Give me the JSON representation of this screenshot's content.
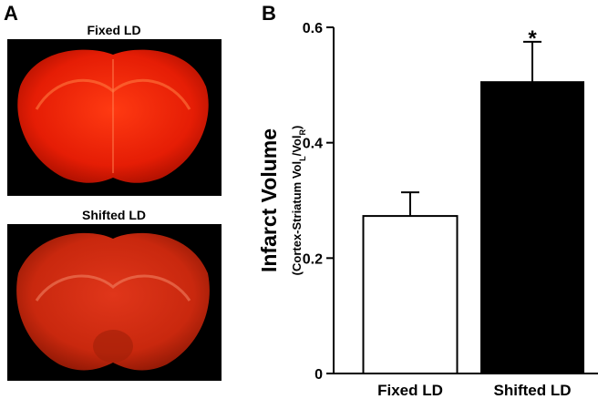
{
  "panels": [
    "A",
    "B"
  ],
  "images": [
    {
      "label": "Fixed LD"
    },
    {
      "label": "Shifted LD"
    }
  ],
  "chart_data": {
    "type": "bar",
    "ylabel": "Infarct Volume",
    "ylabel_parts": [
      "(Cortex-Striatum Vol",
      "L",
      "/Vol",
      "R",
      ")"
    ],
    "categories": [
      "Fixed LD",
      "Shifted LD"
    ],
    "values": [
      0.273,
      0.505
    ],
    "errors": [
      0.041,
      0.07
    ],
    "colors": [
      "#ffffff",
      "#000000"
    ],
    "annotations": [
      null,
      "*"
    ],
    "ylim": [
      0,
      0.6
    ],
    "yticks": [
      0,
      0.2,
      0.4,
      0.6
    ]
  }
}
